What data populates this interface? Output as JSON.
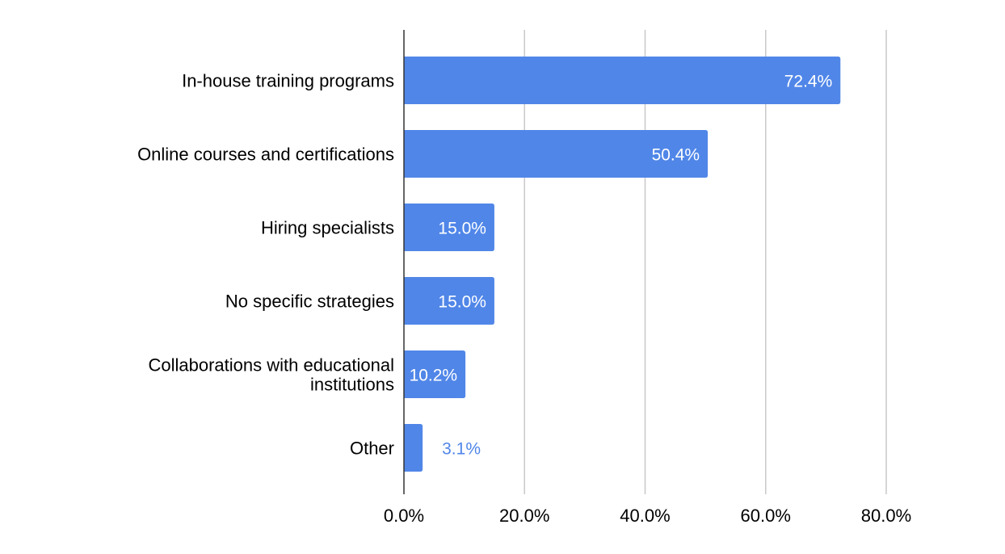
{
  "chart_data": {
    "type": "bar",
    "orientation": "horizontal",
    "categories": [
      "In-house training programs",
      "Online courses and certifications",
      "Hiring specialists",
      "No specific strategies",
      "Collaborations with educational institutions",
      "Other"
    ],
    "values": [
      72.4,
      50.4,
      15.0,
      15.0,
      10.2,
      3.1
    ],
    "data_labels": [
      "72.4%",
      "50.4%",
      "15.0%",
      "15.0%",
      "10.2%",
      "3.1%"
    ],
    "title": "",
    "xlabel": "",
    "ylabel": "",
    "xlim": [
      0,
      80
    ],
    "x_ticks": [
      0,
      20,
      40,
      60,
      80
    ],
    "x_tick_labels": [
      "0.0%",
      "20.0%",
      "40.0%",
      "60.0%",
      "80.0%"
    ],
    "grid": true,
    "legend": "none",
    "colors": {
      "bar": "#5086e8",
      "grid": "#c8c8c8",
      "axis": "#333333",
      "label_inside": "#ffffff",
      "label_outside": "#5086e8"
    }
  }
}
